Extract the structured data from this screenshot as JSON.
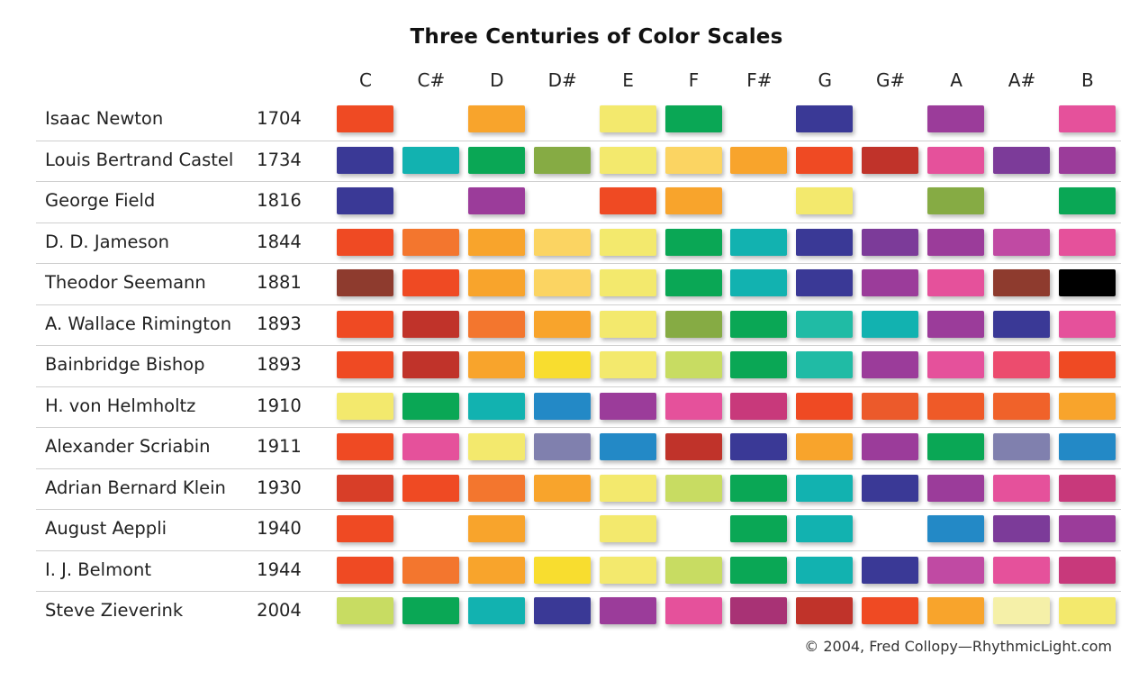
{
  "title": "Three Centuries of Color Scales",
  "notes": [
    "C",
    "C#",
    "D",
    "D#",
    "E",
    "F",
    "F#",
    "G",
    "G#",
    "A",
    "A#",
    "B"
  ],
  "rows": [
    {
      "name": "Isaac Newton",
      "year": "1704",
      "colors": [
        "#ef4a23",
        null,
        "#f8a42c",
        null,
        "#f3e96d",
        "#0aa755",
        null,
        "#3a3996",
        null,
        "#9b3c9a",
        null,
        "#e5519b"
      ]
    },
    {
      "name": "Louis Bertrand Castel",
      "year": "1734",
      "colors": [
        "#3a3996",
        "#12b2b0",
        "#0aa755",
        "#86ab44",
        "#f3e96d",
        "#fbd462",
        "#f8a42c",
        "#ef4a23",
        "#c0332a",
        "#e5519b",
        "#7c3b99",
        "#9b3c9a"
      ]
    },
    {
      "name": "George Field",
      "year": "1816",
      "colors": [
        "#3a3996",
        null,
        "#9b3c9a",
        null,
        "#ef4a23",
        "#f8a42c",
        null,
        "#f3e96d",
        null,
        "#86ab44",
        null,
        "#0aa755"
      ]
    },
    {
      "name": "D. D. Jameson",
      "year": "1844",
      "colors": [
        "#ef4a23",
        "#f3762e",
        "#f8a42c",
        "#fbd462",
        "#f3e96d",
        "#0aa755",
        "#12b2b0",
        "#3a3996",
        "#7c3b99",
        "#9b3c9a",
        "#c04aa3",
        "#e5519b"
      ]
    },
    {
      "name": "Theodor Seemann",
      "year": "1881",
      "colors": [
        "#8e3b2e",
        "#ef4a23",
        "#f8a42c",
        "#fbd462",
        "#f3e96d",
        "#0aa755",
        "#12b2b0",
        "#3a3996",
        "#9b3c9a",
        "#e5519b",
        "#8e3b2e",
        "#000000"
      ]
    },
    {
      "name": "A. Wallace Rimington",
      "year": "1893",
      "colors": [
        "#ef4a23",
        "#c0332a",
        "#f3762e",
        "#f8a42c",
        "#f3e96d",
        "#86ab44",
        "#0aa755",
        "#20bba5",
        "#12b2b0",
        "#9b3c9a",
        "#3a3996",
        "#e5519b"
      ]
    },
    {
      "name": "Bainbridge Bishop",
      "year": "1893",
      "colors": [
        "#ef4a23",
        "#c0332a",
        "#f8a42c",
        "#f8dd2f",
        "#f3e96d",
        "#c8dc62",
        "#0aa755",
        "#20bba5",
        "#9b3c9a",
        "#e5519b",
        "#ec4c6e",
        "#ef4a23"
      ]
    },
    {
      "name": "H. von Helmholtz",
      "year": "1910",
      "colors": [
        "#f3e96d",
        "#0aa755",
        "#12b2b0",
        "#2389c6",
        "#9b3c9a",
        "#e5519b",
        "#c8397b",
        "#ef4a23",
        "#ec5a2b",
        "#ef5a28",
        "#f0622a",
        "#f8a42c"
      ]
    },
    {
      "name": "Alexander Scriabin",
      "year": "1911",
      "colors": [
        "#ef4a23",
        "#e5519b",
        "#f3e96d",
        "#8080ae",
        "#2389c6",
        "#c0332a",
        "#3a3996",
        "#f8a42c",
        "#9b3c9a",
        "#0aa755",
        "#8080ae",
        "#2389c6"
      ]
    },
    {
      "name": "Adrian Bernard Klein",
      "year": "1930",
      "colors": [
        "#d83e28",
        "#ef4a23",
        "#f3762e",
        "#f8a42c",
        "#f3e96d",
        "#c8dc62",
        "#0aa755",
        "#12b2b0",
        "#3a3996",
        "#9b3c9a",
        "#e5519b",
        "#c8397b"
      ]
    },
    {
      "name": "August Aeppli",
      "year": "1940",
      "colors": [
        "#ef4a23",
        null,
        "#f8a42c",
        null,
        "#f3e96d",
        null,
        "#0aa755",
        "#12b2b0",
        null,
        "#2389c6",
        "#7c3b99",
        "#9b3c9a"
      ]
    },
    {
      "name": "I. J. Belmont",
      "year": "1944",
      "colors": [
        "#ef4a23",
        "#f3762e",
        "#f8a42c",
        "#f8dd2f",
        "#f3e96d",
        "#c8dc62",
        "#0aa755",
        "#12b2b0",
        "#3a3996",
        "#c04aa3",
        "#e5519b",
        "#c8397b"
      ]
    },
    {
      "name": "Steve Zieverink",
      "year": "2004",
      "colors": [
        "#c8dc62",
        "#0aa755",
        "#12b2b0",
        "#3a3996",
        "#9b3c9a",
        "#e5519b",
        "#a83275",
        "#c0332a",
        "#ef4a23",
        "#f8a42c",
        "#f5f0a8",
        "#f3e96d"
      ]
    }
  ],
  "credit": "© 2004, Fred Collopy—RhythmicLight.com"
}
